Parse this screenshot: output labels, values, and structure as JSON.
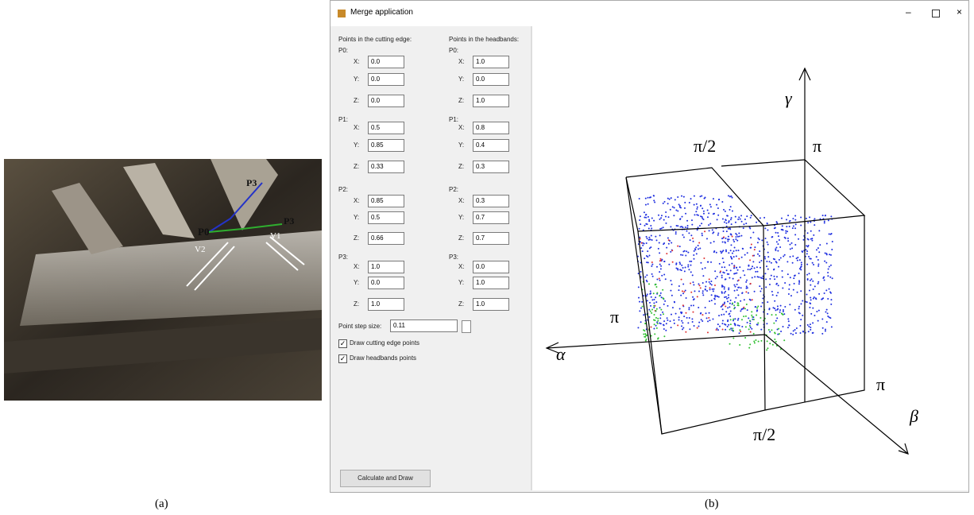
{
  "photo": {
    "labels": [
      "P0",
      "P3",
      "P3",
      "V2",
      "V1"
    ],
    "caption": "(a)"
  },
  "window": {
    "title": "Merge application",
    "coord_labels": [
      "X:",
      "Y:",
      "Z:"
    ],
    "cutting_edge": {
      "heading": "Points in the cutting edge:",
      "points": [
        {
          "label": "P0:",
          "values": [
            "0.0",
            "0.0",
            "0.0"
          ]
        },
        {
          "label": "P1:",
          "values": [
            "0.5",
            "0.85",
            "0.33"
          ]
        },
        {
          "label": "P2:",
          "values": [
            "0.85",
            "0.5",
            "0.66"
          ]
        },
        {
          "label": "P3:",
          "values": [
            "1.0",
            "0.0",
            "1.0"
          ]
        }
      ]
    },
    "headbands": {
      "heading": "Points in the headbands:",
      "points": [
        {
          "label": "P0:",
          "values": [
            "1.0",
            "0.0",
            "1.0"
          ]
        },
        {
          "label": "P1:",
          "values": [
            "0.8",
            "0.4",
            "0.3"
          ]
        },
        {
          "label": "P2:",
          "values": [
            "0.3",
            "0.7",
            "0.7"
          ]
        },
        {
          "label": "P3:",
          "values": [
            "0.0",
            "1.0",
            "1.0"
          ]
        }
      ]
    },
    "step_label": "Point step size:",
    "step_value": "0.11",
    "checkboxes": [
      "Draw cutting edge points",
      "Draw headbands points"
    ],
    "button": "Calculate and Draw",
    "plot": {
      "labels": [
        "γ",
        "π/2",
        "π",
        "π",
        "α",
        "π",
        "β",
        "π/2"
      ]
    }
  },
  "caption": "(b)"
}
